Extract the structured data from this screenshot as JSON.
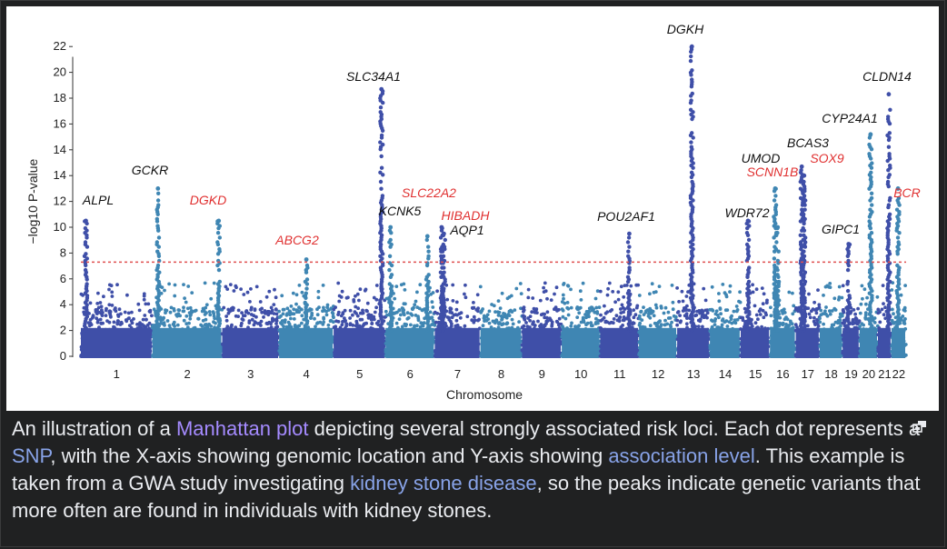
{
  "chart_data": {
    "type": "scatter",
    "title": "",
    "xlabel": "Chromosome",
    "ylabel": "−log10 P-value",
    "ylim": [
      0,
      24
    ],
    "y_ticks": [
      "0",
      "2",
      "4",
      "6",
      "8",
      "10",
      "12",
      "14",
      "14",
      "16",
      "18",
      "20",
      "22"
    ],
    "chromosomes": [
      "1",
      "2",
      "3",
      "4",
      "5",
      "6",
      "7",
      "8",
      "9",
      "10",
      "11",
      "12",
      "13",
      "14",
      "15",
      "16",
      "17",
      "18",
      "19",
      "20",
      "21",
      "22"
    ],
    "significance_threshold": 7.3,
    "colors": {
      "dark": "#3f4fa8",
      "light": "#3f86b3",
      "threshold": "#e05050",
      "label_black": "#111111",
      "label_red": "#e03030"
    },
    "peaks": [
      {
        "gene": "ALPL",
        "chromosome": "1",
        "pos": 0.07,
        "neg_log10_p": 10.5,
        "highlight": false
      },
      {
        "gene": "GCKR",
        "chromosome": "2",
        "pos": 0.08,
        "neg_log10_p": 13.0,
        "highlight": false
      },
      {
        "gene": "DGKD",
        "chromosome": "2",
        "pos": 0.95,
        "neg_log10_p": 10.5,
        "highlight": true
      },
      {
        "gene": "ABCG2",
        "chromosome": "4",
        "pos": 0.5,
        "neg_log10_p": 7.5,
        "highlight": true
      },
      {
        "gene": "SLC34A1",
        "chromosome": "5",
        "pos": 0.92,
        "neg_log10_p": 20.7,
        "highlight": false
      },
      {
        "gene": "KCNK5",
        "chromosome": "6",
        "pos": 0.1,
        "neg_log10_p": 10.0,
        "highlight": false
      },
      {
        "gene": "SLC22A2",
        "chromosome": "6",
        "pos": 0.85,
        "neg_log10_p": 9.3,
        "highlight": true
      },
      {
        "gene": "HIBADH",
        "chromosome": "7",
        "pos": 0.15,
        "neg_log10_p": 10.0,
        "highlight": true
      },
      {
        "gene": "AQP1",
        "chromosome": "7",
        "pos": 0.2,
        "neg_log10_p": 9.5,
        "highlight": false
      },
      {
        "gene": "POU2AF1",
        "chromosome": "11",
        "pos": 0.75,
        "neg_log10_p": 9.5,
        "highlight": false
      },
      {
        "gene": "DGKH",
        "chromosome": "13",
        "pos": 0.45,
        "neg_log10_p": 24.0,
        "highlight": false
      },
      {
        "gene": "WDR72",
        "chromosome": "15",
        "pos": 0.25,
        "neg_log10_p": 10.5,
        "highlight": false
      },
      {
        "gene": "UMOD",
        "chromosome": "16",
        "pos": 0.2,
        "neg_log10_p": 13.0,
        "highlight": false
      },
      {
        "gene": "SCNN1B",
        "chromosome": "16",
        "pos": 0.3,
        "neg_log10_p": 10.0,
        "highlight": true
      },
      {
        "gene": "BCAS3",
        "chromosome": "17",
        "pos": 0.25,
        "neg_log10_p": 14.7,
        "highlight": false
      },
      {
        "gene": "SOX9",
        "chromosome": "17",
        "pos": 0.35,
        "neg_log10_p": 14.0,
        "highlight": true
      },
      {
        "gene": "GIPC1",
        "chromosome": "19",
        "pos": 0.35,
        "neg_log10_p": 8.7,
        "highlight": false
      },
      {
        "gene": "CYP24A1",
        "chromosome": "20",
        "pos": 0.6,
        "neg_log10_p": 17.2,
        "highlight": false
      },
      {
        "gene": "BCR",
        "chromosome": "22",
        "pos": 0.45,
        "neg_log10_p": 13.0,
        "highlight": true
      },
      {
        "gene": "CLDN14",
        "chromosome": "21",
        "pos": 0.8,
        "neg_log10_p": 20.3,
        "highlight": false
      }
    ]
  },
  "caption": {
    "p1": "An illustration of a ",
    "link_manhattan": "Manhattan plot",
    "p2": " depicting several strongly associated risk loci. Each dot represents a ",
    "link_snp": "SNP",
    "p3": ", with the X-axis showing genomic location and Y-axis showing ",
    "link_assoc": "association level",
    "p4": ". This example is taken from a GWA study investigating ",
    "link_kidney": "kidney stone disease",
    "p5": ", so the peaks indicate genetic variants that more often are found in individuals with kidney stones."
  },
  "icons": {
    "enlarge": "enlarge-icon"
  }
}
